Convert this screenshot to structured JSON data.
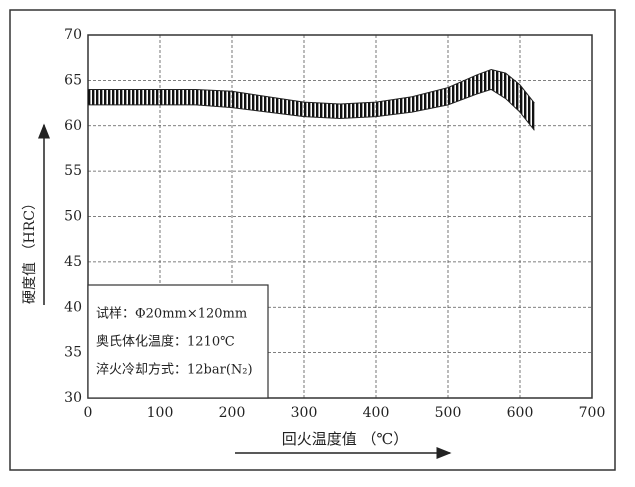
{
  "chart_data": {
    "type": "band",
    "x_label": "回火温度值 （℃）",
    "y_label": "硬度值 （HRC）",
    "annotations": [
      "试样：Φ20mm×120mm",
      "奥氏体化温度：1210℃",
      "淬火冷却方式：12bar(N₂)"
    ],
    "x": [
      0,
      50,
      100,
      150,
      200,
      250,
      300,
      350,
      400,
      450,
      500,
      540,
      560,
      580,
      600,
      620
    ],
    "series": [
      {
        "name": "upper",
        "color": "#222222",
        "values": [
          64.0,
          64.0,
          64.0,
          64.0,
          63.8,
          63.2,
          62.6,
          62.4,
          62.6,
          63.2,
          64.2,
          65.6,
          66.2,
          65.8,
          64.5,
          62.5
        ]
      },
      {
        "name": "lower",
        "color": "#222222",
        "values": [
          62.3,
          62.3,
          62.3,
          62.3,
          62.0,
          61.5,
          61.0,
          60.8,
          61.0,
          61.5,
          62.3,
          63.5,
          64.0,
          63.0,
          61.5,
          59.5
        ]
      }
    ],
    "xlim": [
      0,
      700
    ],
    "xticks": [
      0,
      100,
      200,
      300,
      400,
      500,
      600,
      700
    ],
    "ylim": [
      30,
      70
    ],
    "yticks": [
      30,
      35,
      40,
      45,
      50,
      55,
      60,
      65,
      70
    ],
    "grid": true
  }
}
